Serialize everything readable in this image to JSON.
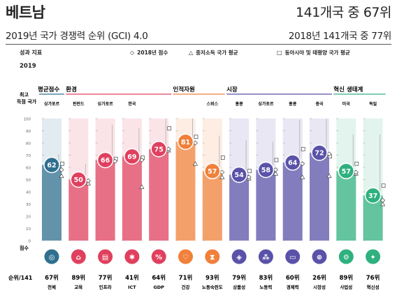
{
  "header": {
    "country": "베트남",
    "rank_2019": "141개국 중 67위",
    "gci_title": "2019년 국가 경쟁력 순위 (GCI) 4.0",
    "rank_2018": "2018년 141개국 중 77위"
  },
  "labels": {
    "performance": "성과 지표",
    "year": "2019",
    "best_country_line1": "최고",
    "best_country_line2": "득점 국가",
    "score_axis": "점수",
    "rank_axis": "순위/141"
  },
  "legend": {
    "score_2018": "2018년 점수",
    "middle_income_avg": "중저소득 국가 평균",
    "east_asia_pacific_avg": "동아시아 및 태평양 국가 평균"
  },
  "colors": {
    "overall": "#2f6f8f",
    "environment": "#e0405e",
    "human_capital": "#f0803a",
    "markets": "#5a52a8",
    "innovation": "#2fb07f"
  },
  "chart_data": {
    "type": "bar",
    "ylim": [
      0,
      100
    ],
    "yticks": [
      0,
      10,
      20,
      30,
      40,
      50,
      60,
      70,
      80,
      90,
      100
    ],
    "groups": [
      {
        "label": "평균점수",
        "color": "#2f6f8f",
        "start": 0,
        "end": 0
      },
      {
        "label": "환경",
        "color": "#e0405e",
        "start": 1,
        "end": 4
      },
      {
        "label": "인적자원",
        "color": "#f0803a",
        "start": 5,
        "end": 6
      },
      {
        "label": "시장",
        "color": "#5a52a8",
        "start": 7,
        "end": 10
      },
      {
        "label": "혁신 생태계",
        "color": "#2fb07f",
        "start": 11,
        "end": 12
      }
    ],
    "pillars": [
      {
        "name": "전체",
        "best": "싱가포르",
        "score": 62,
        "rank": "67위",
        "score_2018": 58,
        "mid_avg": 53,
        "east_avg": 63,
        "best_score": 71,
        "icon": "target-icon",
        "glyph": "◎"
      },
      {
        "name": "교육",
        "best": "핀란드",
        "score": 50,
        "rank": "89위",
        "score_2018": 49,
        "mid_avg": 47,
        "east_avg": null,
        "best_score": 63,
        "icon": "institution-icon",
        "glyph": "⌂"
      },
      {
        "name": "인프라",
        "best": "싱가포르",
        "score": 66,
        "rank": "77위",
        "score_2018": 65,
        "mid_avg": null,
        "east_avg": 67,
        "best_score": 95,
        "icon": "infrastructure-icon",
        "glyph": "▤"
      },
      {
        "name": "ICT",
        "best": "한국",
        "score": 69,
        "rank": "41위",
        "score_2018": 66,
        "mid_avg": 44,
        "east_avg": 68,
        "best_score": 92,
        "icon": "chip-icon",
        "glyph": "✱"
      },
      {
        "name": "GDP",
        "best": "",
        "score": 75,
        "rank": "64위",
        "score_2018": 75,
        "mid_avg": 74,
        "east_avg": 92,
        "best_score": 100,
        "icon": "gdp-icon",
        "glyph": "%"
      },
      {
        "name": "건강",
        "best": "",
        "score": 81,
        "rank": "71위",
        "score_2018": 80,
        "mid_avg": 63,
        "east_avg": 85,
        "best_score": 100,
        "icon": "health-icon",
        "glyph": "♡"
      },
      {
        "name": "노동숙련도",
        "best": "스위스",
        "score": 57,
        "rank": "93위",
        "score_2018": 56,
        "mid_avg": 52,
        "east_avg": 68,
        "best_score": 86,
        "icon": "skills-icon",
        "glyph": "⧗"
      },
      {
        "name": "상품성",
        "best": "홍콩",
        "score": 54,
        "rank": "79위",
        "score_2018": 52,
        "mid_avg": 51,
        "east_avg": 57,
        "best_score": 82,
        "icon": "tag-icon",
        "glyph": "◈"
      },
      {
        "name": "노동력",
        "best": "싱가포르",
        "score": 58,
        "rank": "83위",
        "score_2018": 58,
        "mid_avg": 55,
        "east_avg": 66,
        "best_score": 81,
        "icon": "people-icon",
        "glyph": "⁂"
      },
      {
        "name": "경제력",
        "best": "홍콩",
        "score": 64,
        "rank": "60위",
        "score_2018": 63,
        "mid_avg": 52,
        "east_avg": 75,
        "best_score": 99,
        "icon": "card-icon",
        "glyph": "▭"
      },
      {
        "name": "시장성",
        "best": "중국",
        "score": 72,
        "rank": "26위",
        "score_2018": 71,
        "mid_avg": 53,
        "east_avg": 69,
        "best_score": 100,
        "icon": "market-icon",
        "glyph": "⊕"
      },
      {
        "name": "사업성",
        "best": "미국",
        "score": 57,
        "rank": "89위",
        "score_2018": 56,
        "mid_avg": 55,
        "east_avg": 63,
        "best_score": 87,
        "icon": "business-icon",
        "glyph": "⚙"
      },
      {
        "name": "혁신성",
        "best": "독일",
        "score": 37,
        "rank": "76위",
        "score_2018": 33,
        "mid_avg": 30,
        "east_avg": 45,
        "best_score": 87,
        "icon": "innovation-icon",
        "glyph": "✦"
      }
    ]
  }
}
